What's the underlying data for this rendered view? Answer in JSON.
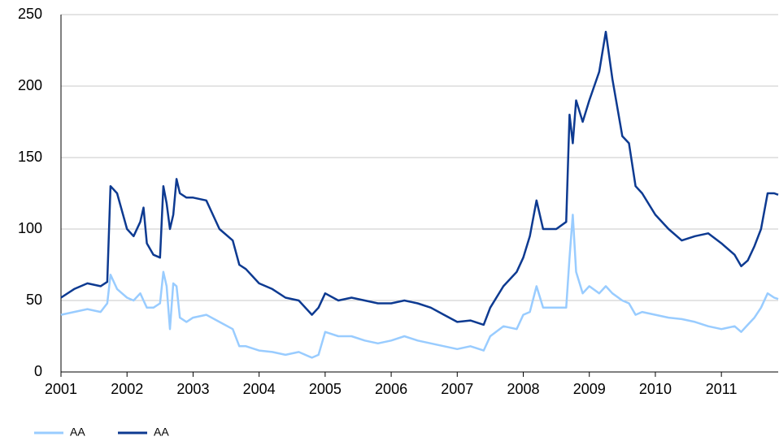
{
  "chart_data": {
    "type": "line",
    "x": [
      2001.0,
      2001.2,
      2001.4,
      2001.6,
      2001.7,
      2001.75,
      2001.85,
      2002.0,
      2002.1,
      2002.2,
      2002.25,
      2002.3,
      2002.4,
      2002.5,
      2002.55,
      2002.6,
      2002.65,
      2002.7,
      2002.75,
      2002.8,
      2002.9,
      2003.0,
      2003.2,
      2003.4,
      2003.6,
      2003.7,
      2003.8,
      2004.0,
      2004.2,
      2004.4,
      2004.6,
      2004.8,
      2004.9,
      2005.0,
      2005.2,
      2005.4,
      2005.6,
      2005.8,
      2006.0,
      2006.2,
      2006.4,
      2006.6,
      2006.8,
      2007.0,
      2007.2,
      2007.4,
      2007.5,
      2007.7,
      2007.9,
      2008.0,
      2008.1,
      2008.2,
      2008.3,
      2008.5,
      2008.65,
      2008.7,
      2008.75,
      2008.8,
      2008.9,
      2009.0,
      2009.15,
      2009.25,
      2009.35,
      2009.5,
      2009.6,
      2009.7,
      2009.8,
      2010.0,
      2010.2,
      2010.4,
      2010.6,
      2010.8,
      2011.0,
      2011.2,
      2011.3,
      2011.4,
      2011.5,
      2011.6,
      2011.7,
      2011.8,
      2011.86
    ],
    "series": [
      {
        "name": "AA",
        "color": "#99ccff",
        "values": [
          40,
          42,
          44,
          42,
          48,
          68,
          58,
          52,
          50,
          55,
          50,
          45,
          45,
          48,
          70,
          60,
          30,
          62,
          60,
          38,
          35,
          38,
          40,
          35,
          30,
          18,
          18,
          15,
          14,
          12,
          14,
          10,
          12,
          28,
          25,
          25,
          22,
          20,
          22,
          25,
          22,
          20,
          18,
          16,
          18,
          15,
          25,
          32,
          30,
          40,
          42,
          60,
          45,
          45,
          45,
          80,
          110,
          70,
          55,
          60,
          55,
          60,
          55,
          50,
          48,
          40,
          42,
          40,
          38,
          37,
          35,
          32,
          30,
          32,
          28,
          33,
          38,
          45,
          55,
          52,
          51
        ]
      },
      {
        "name": "AA",
        "color": "#0d3a91",
        "values": [
          52,
          58,
          62,
          60,
          63,
          130,
          125,
          100,
          95,
          105,
          115,
          90,
          82,
          80,
          130,
          118,
          100,
          110,
          135,
          125,
          122,
          122,
          120,
          100,
          92,
          75,
          72,
          62,
          58,
          52,
          50,
          40,
          45,
          55,
          50,
          52,
          50,
          48,
          48,
          50,
          48,
          45,
          40,
          35,
          36,
          33,
          45,
          60,
          70,
          80,
          95,
          120,
          100,
          100,
          105,
          180,
          160,
          190,
          175,
          190,
          210,
          238,
          205,
          165,
          160,
          130,
          125,
          110,
          100,
          92,
          95,
          97,
          90,
          82,
          74,
          78,
          88,
          100,
          125,
          125,
          124
        ]
      }
    ],
    "xlim": [
      2001,
      2011.86
    ],
    "xticks": [
      2001,
      2002,
      2003,
      2004,
      2005,
      2006,
      2007,
      2008,
      2009,
      2010,
      2011
    ],
    "ylim": [
      0,
      250
    ],
    "yticks": [
      0,
      50,
      100,
      150,
      200,
      250
    ],
    "grid": true
  }
}
